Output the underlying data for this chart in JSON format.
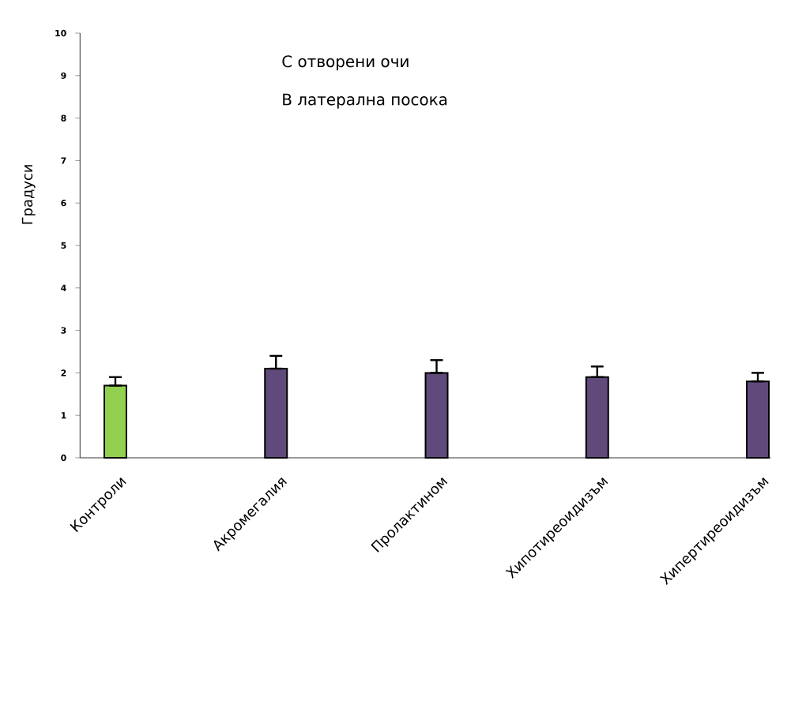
{
  "chart_data": {
    "type": "bar",
    "categories": [
      "Контроли",
      "Акромегалия",
      "Пролактином",
      "Хипотиреоидизъм",
      "Хипертиреоидизъм"
    ],
    "values": [
      1.7,
      2.1,
      2.0,
      1.9,
      1.8
    ],
    "errors": [
      [
        1.7,
        1.9
      ],
      [
        2.1,
        2.4
      ],
      [
        2.0,
        2.3
      ],
      [
        1.9,
        2.15
      ],
      [
        1.8,
        2.0
      ]
    ],
    "colors": [
      "#92d050",
      "#604a7b",
      "#604a7b",
      "#604a7b",
      "#604a7b"
    ],
    "ylabel": "Градуси",
    "ylim": [
      0,
      10
    ],
    "yticks": [
      0,
      1,
      2,
      3,
      4,
      5,
      6,
      7,
      8,
      9,
      10
    ],
    "annotations": [
      "С отворени очи",
      "В латерална посока"
    ],
    "grid": false
  }
}
